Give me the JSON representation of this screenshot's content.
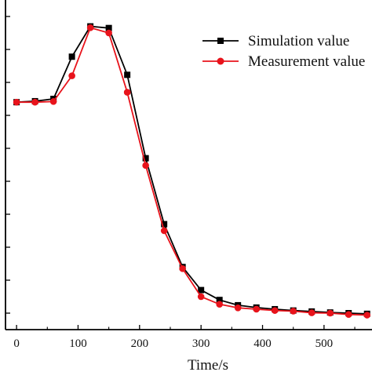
{
  "chart_data": {
    "type": "line",
    "xlabel": "Time/s",
    "ylabel": "",
    "xlim": [
      -18,
      578
    ],
    "ylim": [
      0,
      1
    ],
    "x_ticks": [
      0,
      100,
      200,
      300,
      400,
      500
    ],
    "x_tick_labels": [
      "0",
      "100",
      "200",
      "300",
      "400",
      "500"
    ],
    "y_ticks": [
      0.05,
      0.15,
      0.25,
      0.35,
      0.45,
      0.55,
      0.65,
      0.75,
      0.85,
      0.95
    ],
    "y_tick_labels": [],
    "legend_position": "top-right",
    "series": [
      {
        "name": "Simulation value",
        "color": "#000000",
        "marker": "square",
        "x": [
          0,
          30,
          60,
          90,
          120,
          150,
          180,
          210,
          240,
          270,
          300,
          330,
          360,
          390,
          420,
          450,
          480,
          510,
          540,
          570
        ],
        "y": [
          0.69,
          0.693,
          0.7,
          0.828,
          0.92,
          0.915,
          0.773,
          0.52,
          0.32,
          0.19,
          0.12,
          0.09,
          0.074,
          0.067,
          0.062,
          0.058,
          0.055,
          0.052,
          0.05,
          0.048
        ]
      },
      {
        "name": "Measurement value",
        "color": "#e8131b",
        "marker": "circle",
        "x": [
          0,
          30,
          60,
          90,
          120,
          150,
          180,
          210,
          240,
          270,
          300,
          330,
          360,
          390,
          420,
          450,
          480,
          510,
          540,
          570
        ],
        "y": [
          0.69,
          0.69,
          0.692,
          0.77,
          0.916,
          0.9,
          0.72,
          0.498,
          0.3,
          0.185,
          0.1,
          0.077,
          0.066,
          0.062,
          0.058,
          0.056,
          0.051,
          0.05,
          0.046,
          0.044
        ]
      }
    ]
  }
}
